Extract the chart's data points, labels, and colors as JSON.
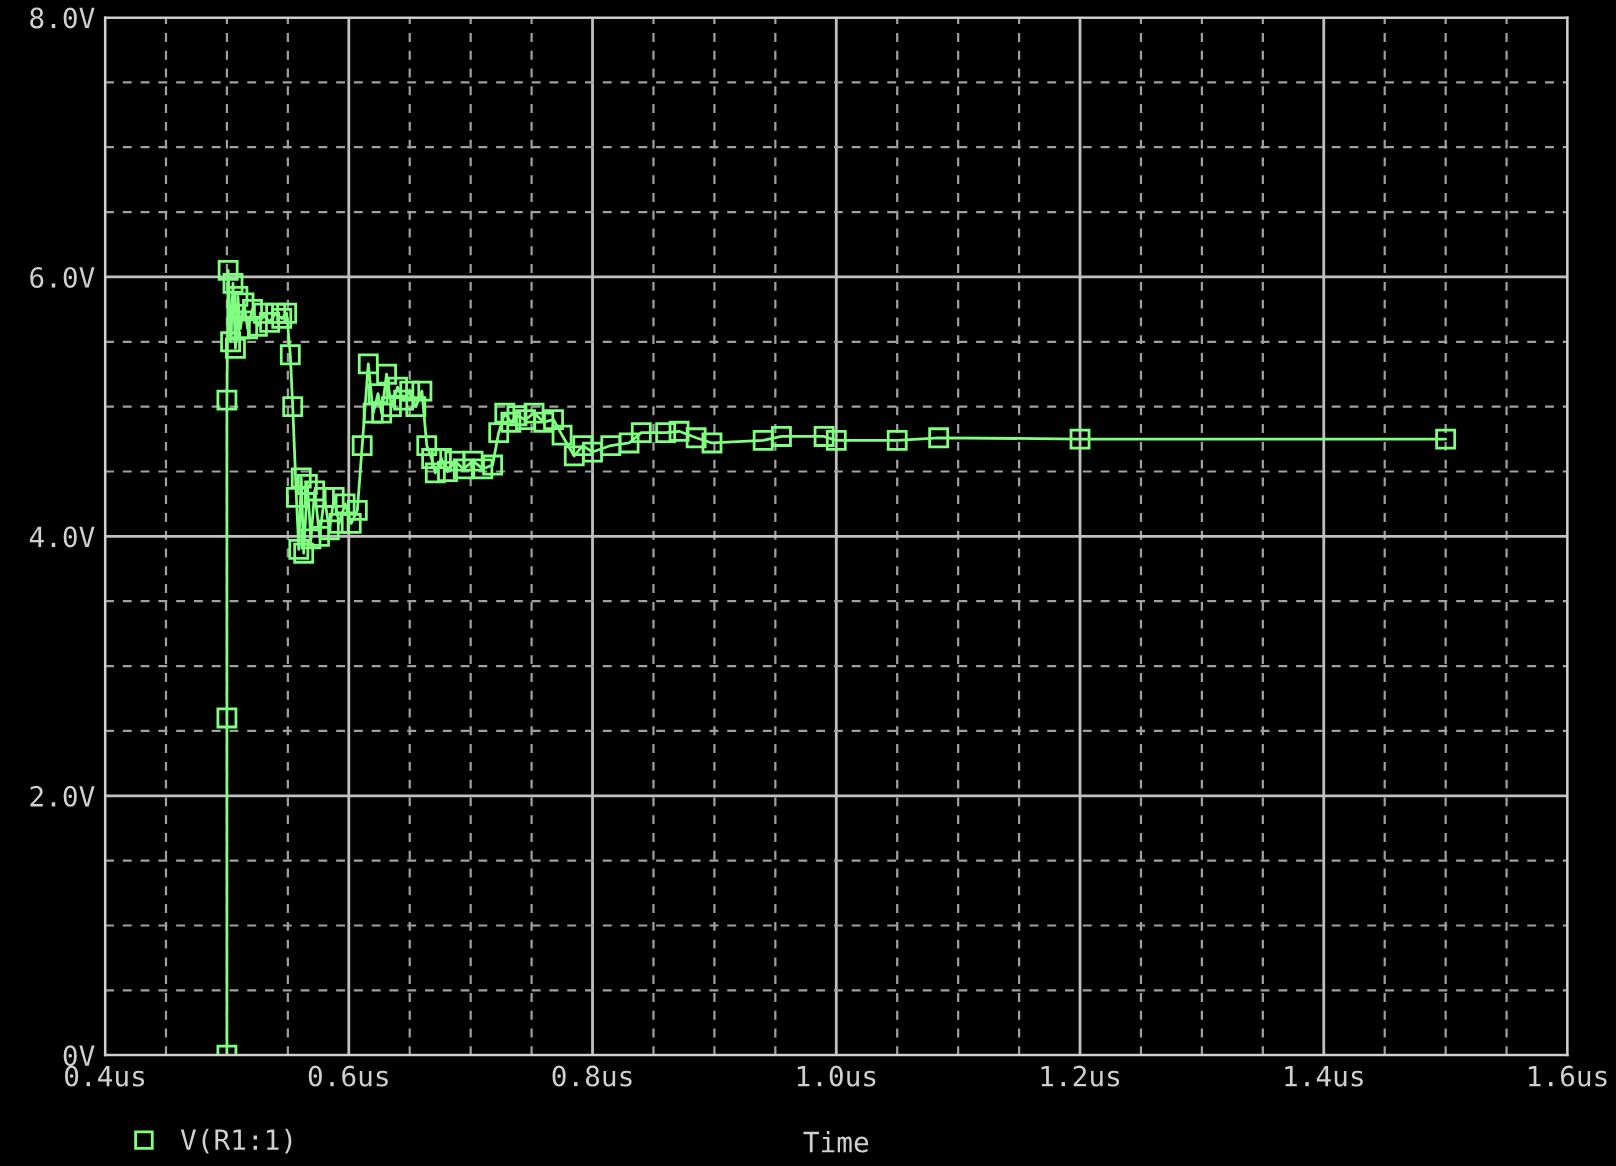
{
  "chart_data": {
    "type": "line",
    "xlabel": "Time",
    "x": [
      0.5,
      0.5,
      0.5,
      0.501,
      0.503,
      0.505,
      0.507,
      0.509,
      0.511,
      0.514,
      0.517,
      0.521,
      0.525,
      0.53,
      0.535,
      0.54,
      0.545,
      0.549,
      0.552,
      0.554,
      0.557,
      0.559,
      0.561,
      0.563,
      0.566,
      0.569,
      0.572,
      0.576,
      0.58,
      0.584,
      0.588,
      0.592,
      0.597,
      0.602,
      0.607,
      0.611,
      0.616,
      0.62,
      0.624,
      0.627,
      0.631,
      0.635,
      0.64,
      0.645,
      0.65,
      0.655,
      0.66,
      0.664,
      0.668,
      0.671,
      0.676,
      0.681,
      0.687,
      0.694,
      0.702,
      0.71,
      0.718,
      0.723,
      0.728,
      0.733,
      0.738,
      0.745,
      0.752,
      0.76,
      0.768,
      0.775,
      0.785,
      0.792,
      0.8,
      0.815,
      0.83,
      0.84,
      0.86,
      0.871,
      0.885,
      0.898,
      0.94,
      0.955,
      0.99,
      1.0,
      1.05,
      1.084,
      1.2,
      1.5
    ],
    "series": [
      {
        "name": "V(R1:1)",
        "color": "#80ff80",
        "values": [
          0.0,
          2.6,
          5.05,
          6.05,
          5.5,
          5.95,
          5.45,
          5.85,
          5.6,
          5.8,
          5.6,
          5.75,
          5.62,
          5.72,
          5.65,
          5.72,
          5.68,
          5.72,
          5.4,
          5.0,
          4.3,
          3.9,
          4.45,
          3.87,
          4.4,
          3.98,
          4.35,
          4.0,
          4.3,
          4.05,
          4.3,
          4.1,
          4.25,
          4.1,
          4.2,
          4.7,
          5.33,
          4.95,
          5.1,
          4.95,
          5.25,
          5.0,
          5.15,
          5.05,
          5.12,
          5.0,
          5.12,
          4.7,
          4.6,
          4.49,
          4.6,
          4.5,
          4.58,
          4.52,
          4.58,
          4.52,
          4.55,
          4.8,
          4.95,
          4.88,
          4.93,
          4.9,
          4.95,
          4.88,
          4.9,
          4.78,
          4.62,
          4.7,
          4.65,
          4.7,
          4.72,
          4.8,
          4.8,
          4.81,
          4.76,
          4.72,
          4.74,
          4.77,
          4.77,
          4.74,
          4.74,
          4.76,
          4.75,
          4.75
        ]
      }
    ],
    "xlim": [
      0.4,
      1.6
    ],
    "xticks": [
      {
        "value": 0.4,
        "label": "0.4us"
      },
      {
        "value": 0.6,
        "label": "0.6us"
      },
      {
        "value": 0.8,
        "label": "0.8us"
      },
      {
        "value": 1.0,
        "label": "1.0us"
      },
      {
        "value": 1.2,
        "label": "1.2us"
      },
      {
        "value": 1.4,
        "label": "1.4us"
      },
      {
        "value": 1.6,
        "label": "1.6us"
      }
    ],
    "ylim": [
      0,
      8
    ],
    "yticks": [
      {
        "value": 0,
        "label": "0V"
      },
      {
        "value": 2,
        "label": "2.0V"
      },
      {
        "value": 4,
        "label": "4.0V"
      },
      {
        "value": 6,
        "label": "6.0V"
      },
      {
        "value": 8,
        "label": "8.0V"
      }
    ],
    "grid": true,
    "marker": "square",
    "line_style": "solid",
    "legend": "bottom left"
  }
}
